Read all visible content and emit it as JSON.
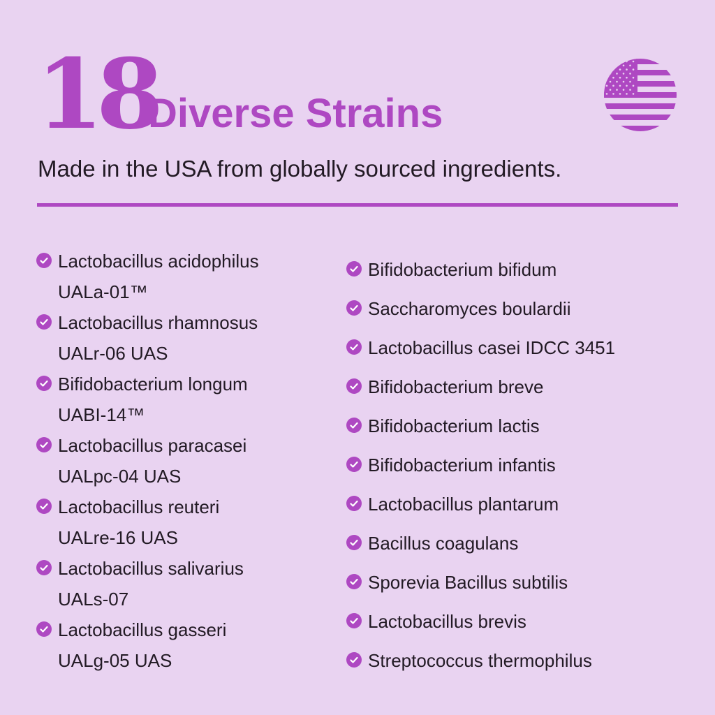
{
  "header": {
    "number": "18",
    "title": "Diverse Strains",
    "subtitle": "Made in the USA from globally sourced ingredients.",
    "flag_icon": "usa-flag-icon"
  },
  "colors": {
    "accent": "#ae48c2",
    "background": "#e9d3f1",
    "text": "#221a24"
  },
  "left_strains": [
    {
      "name": "Lactobacillus acidophilus",
      "code": "UALa-01™"
    },
    {
      "name": "Lactobacillus rhamnosus",
      "code": "UALr-06 UAS"
    },
    {
      "name": "Bifidobacterium longum",
      "code": "UABI-14™"
    },
    {
      "name": "Lactobacillus paracasei",
      "code": "UALpc-04 UAS"
    },
    {
      "name": "Lactobacillus reuteri",
      "code": "UALre-16 UAS"
    },
    {
      "name": "Lactobacillus salivarius",
      "code": "UALs-07"
    },
    {
      "name": "Lactobacillus gasseri",
      "code": "UALg-05 UAS"
    }
  ],
  "right_strains": [
    "Bifidobacterium bifidum",
    "Saccharomyces boulardii",
    "Lactobacillus casei IDCC 3451",
    "Bifidobacterium breve",
    "Bifidobacterium lactis",
    "Bifidobacterium infantis",
    "Lactobacillus plantarum",
    "Bacillus coagulans",
    "Sporevia Bacillus subtilis",
    "Lactobacillus brevis",
    "Streptococcus thermophilus"
  ]
}
